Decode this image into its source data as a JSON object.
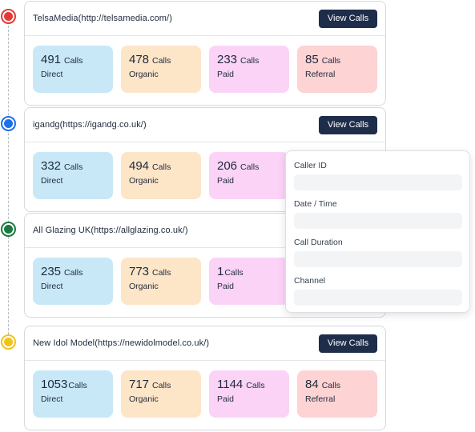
{
  "accounts": [
    {
      "title": "TelsaMedia(http://telsamedia.com/)",
      "button_label": "View Calls",
      "dot_color": "#e53935",
      "stats": [
        {
          "value": "491",
          "unit": "Calls",
          "label": "Direct"
        },
        {
          "value": "478",
          "unit": "Calls",
          "label": "Organic"
        },
        {
          "value": "233",
          "unit": "Calls",
          "label": "Paid"
        },
        {
          "value": "85",
          "unit": "Calls",
          "label": "Referral"
        }
      ]
    },
    {
      "title": "igandg(https://igandg.co.uk/)",
      "button_label": "View Calls",
      "dot_color": "#1e6fe8",
      "stats": [
        {
          "value": "332",
          "unit": "Calls",
          "label": "Direct"
        },
        {
          "value": "494",
          "unit": "Calls",
          "label": "Organic"
        },
        {
          "value": "206",
          "unit": "Calls",
          "label": "Paid"
        }
      ]
    },
    {
      "title": "All Glazing UK(https://allglazing.co.uk/)",
      "dot_color": "#1b7a3e",
      "stats": [
        {
          "value": "235",
          "unit": "Calls",
          "label": "Direct"
        },
        {
          "value": "773",
          "unit": "Calls",
          "label": "Organic"
        },
        {
          "value": "1",
          "unit": "Calls",
          "label": "Paid"
        }
      ]
    },
    {
      "title": "New Idol Model(https://newidolmodel.co.uk/)",
      "button_label": "View Calls",
      "dot_color": "#f2c21b",
      "stats": [
        {
          "value": "1053",
          "unit": "Calls",
          "label": "Direct"
        },
        {
          "value": "717",
          "unit": "Calls",
          "label": "Organic"
        },
        {
          "value": "1144",
          "unit": "Calls",
          "label": "Paid"
        },
        {
          "value": "84",
          "unit": "Calls",
          "label": "Referral"
        }
      ]
    }
  ],
  "popup": {
    "fields": [
      {
        "label": "Caller ID",
        "value": ""
      },
      {
        "label": "Date / Time",
        "value": ""
      },
      {
        "label": "Call Duration",
        "value": ""
      },
      {
        "label": "Channel",
        "value": ""
      }
    ]
  }
}
